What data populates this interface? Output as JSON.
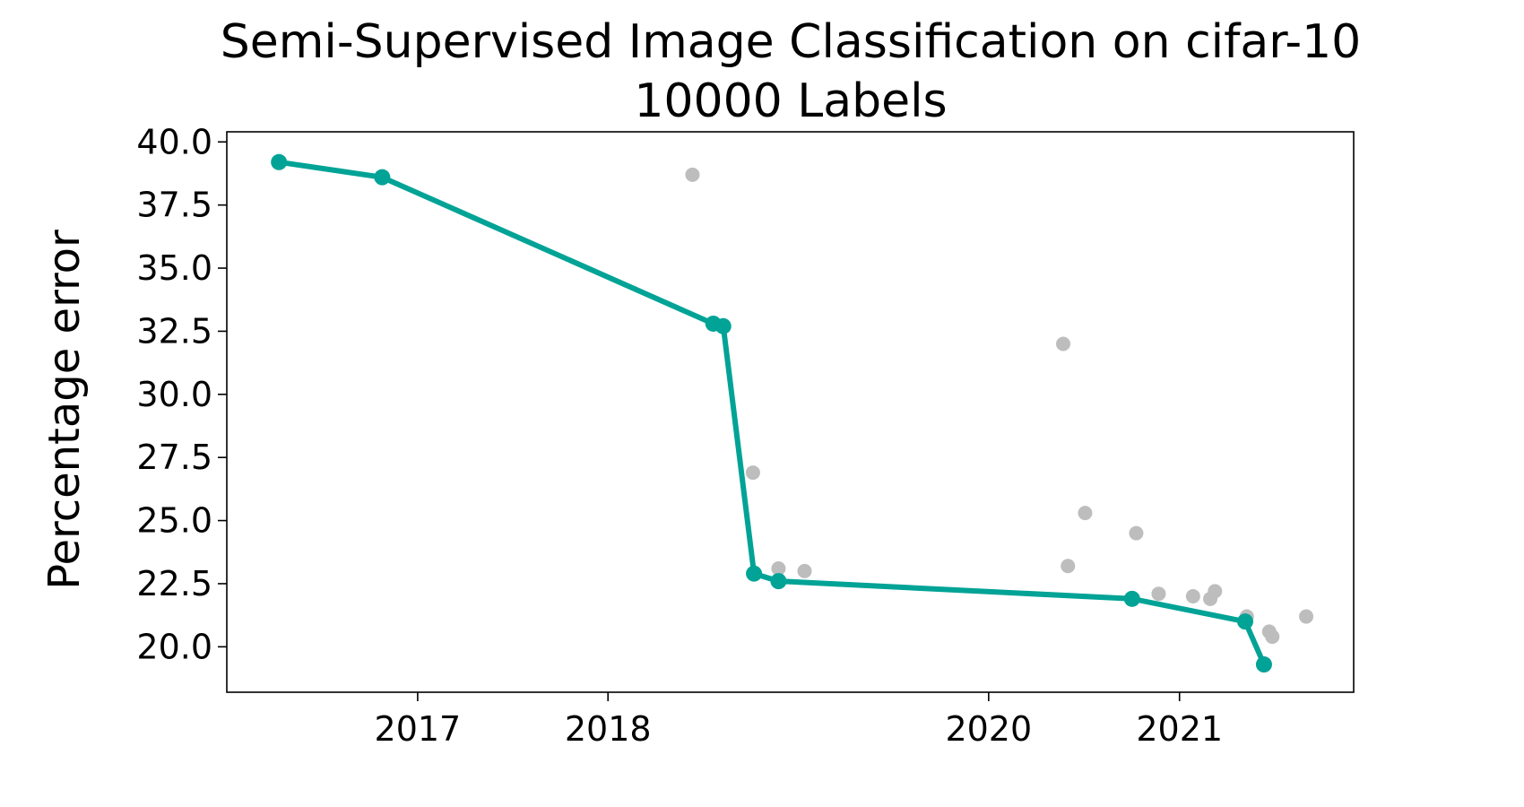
{
  "chart_data": {
    "type": "scatter",
    "title_lines": [
      "Semi-Supervised Image Classification on cifar-10",
      "10000 Labels"
    ],
    "xlabel": "",
    "ylabel": "Percentage error",
    "x_is_date": true,
    "xlim": [
      "2016-01-01",
      "2021-12-01"
    ],
    "ylim": [
      18.2,
      40.4
    ],
    "xticks": [
      {
        "label": "2017",
        "value": "2017-01-01"
      },
      {
        "label": "2018",
        "value": "2018-01-01"
      },
      {
        "label": "2020",
        "value": "2020-01-01"
      },
      {
        "label": "2021",
        "value": "2021-01-01"
      }
    ],
    "yticks": [
      "20.0",
      "22.5",
      "25.0",
      "27.5",
      "30.0",
      "32.5",
      "35.0",
      "37.5",
      "40.0"
    ],
    "grid": false,
    "legend": "none",
    "colors": {
      "sota": "#00a396",
      "other": "#bdbdbd"
    },
    "series": [
      {
        "role": "state-of-the-art",
        "style": "line+markers",
        "points": [
          {
            "x": "2016-04-10",
            "y": 39.2
          },
          {
            "x": "2016-10-25",
            "y": 38.6
          },
          {
            "x": "2018-07-22",
            "y": 32.8
          },
          {
            "x": "2018-08-10",
            "y": 32.7
          },
          {
            "x": "2018-10-08",
            "y": 22.9
          },
          {
            "x": "2018-11-24",
            "y": 22.6
          },
          {
            "x": "2020-10-02",
            "y": 21.9
          },
          {
            "x": "2021-05-07",
            "y": 21.0
          },
          {
            "x": "2021-06-12",
            "y": 19.3
          }
        ]
      },
      {
        "role": "other",
        "style": "markers",
        "points": [
          {
            "x": "2018-06-12",
            "y": 38.7
          },
          {
            "x": "2018-10-06",
            "y": 26.9
          },
          {
            "x": "2018-11-24",
            "y": 23.1
          },
          {
            "x": "2019-01-13",
            "y": 23.0
          },
          {
            "x": "2020-05-23",
            "y": 32.0
          },
          {
            "x": "2020-06-01",
            "y": 23.2
          },
          {
            "x": "2020-07-04",
            "y": 25.3
          },
          {
            "x": "2020-10-10",
            "y": 24.5
          },
          {
            "x": "2020-11-22",
            "y": 22.1
          },
          {
            "x": "2021-01-27",
            "y": 22.0
          },
          {
            "x": "2021-03-01",
            "y": 21.9
          },
          {
            "x": "2021-03-10",
            "y": 22.2
          },
          {
            "x": "2021-05-10",
            "y": 21.2
          },
          {
            "x": "2021-06-22",
            "y": 20.6
          },
          {
            "x": "2021-06-28",
            "y": 20.4
          },
          {
            "x": "2021-09-01",
            "y": 21.2
          }
        ]
      }
    ]
  }
}
